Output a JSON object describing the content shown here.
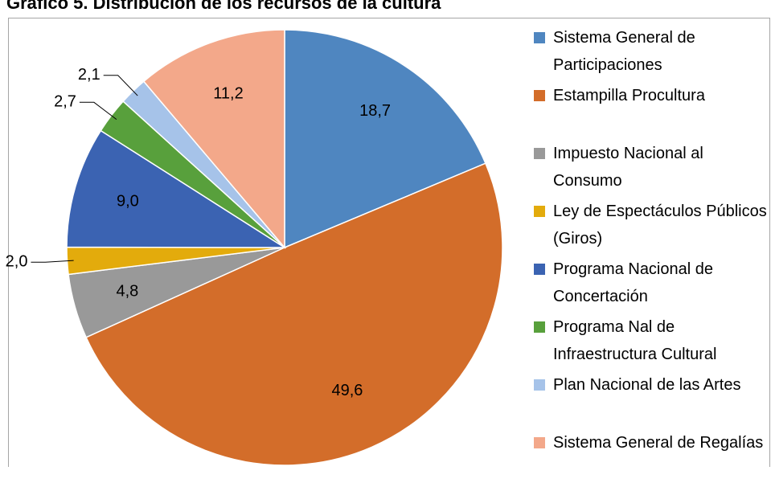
{
  "chart_data": {
    "type": "pie",
    "title": "Gráfico 5. Distribución de los recursos de la cultura",
    "categories": [
      "Sistema General de Participaciones",
      "Estampilla Procultura",
      "Impuesto Nacional al Consumo",
      "Ley de Espectáculos Públicos (Giros)",
      "Programa Nacional de Concertación",
      "Programa Nal de Infraestructura Cultural",
      "Plan Nacional de las Artes",
      "Sistema General de Regalías"
    ],
    "values": [
      18.7,
      49.6,
      4.8,
      2.0,
      9.0,
      2.7,
      2.1,
      11.2
    ],
    "value_labels": [
      "18,7",
      "49,6",
      "4,8",
      "2,0",
      "9,0",
      "2,7",
      "2,1",
      "11,2"
    ],
    "colors": [
      "#4f86c0",
      "#d36d2a",
      "#999999",
      "#e3ab0c",
      "#3b63b2",
      "#58a03c",
      "#a6c3e9",
      "#f3a88a"
    ],
    "legend": "right"
  }
}
